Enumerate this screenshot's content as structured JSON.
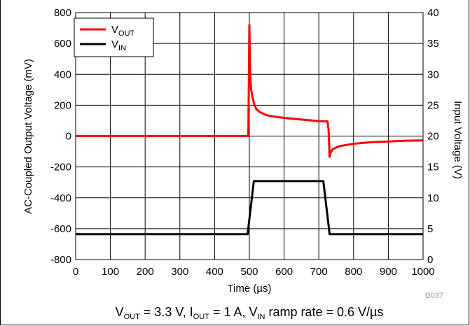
{
  "chart_data": {
    "type": "line",
    "xlabel": "Time (µs)",
    "ylabel_left": "AC-Coupled Output Voltage (mV)",
    "ylabel_right": "Input Voltage (V)",
    "xlim": [
      0,
      1000
    ],
    "ylim_left": [
      -800,
      800
    ],
    "ylim_right": [
      0,
      40
    ],
    "x_ticks": [
      "0",
      "100",
      "200",
      "300",
      "400",
      "500",
      "600",
      "700",
      "800",
      "900",
      "1000"
    ],
    "y_left_ticks": [
      "800",
      "600",
      "400",
      "200",
      "0",
      "-200",
      "-400",
      "-600",
      "-800"
    ],
    "y_right_ticks": [
      "40",
      "35",
      "30",
      "25",
      "20",
      "15",
      "10",
      "5",
      "0"
    ],
    "grid": true,
    "legend_position": "top-left",
    "series": [
      {
        "name": "VOUT",
        "legend_main": "V",
        "legend_sub": "OUT",
        "axis": "left",
        "color": "#ff0000",
        "x": [
          0,
          100,
          200,
          300,
          400,
          497,
          500,
          502,
          505,
          510,
          515,
          520,
          530,
          540,
          550,
          575,
          600,
          650,
          700,
          725,
          728,
          731,
          733,
          740,
          760,
          800,
          850,
          900,
          950,
          1000
        ],
        "y": [
          0,
          0,
          0,
          0,
          0,
          0,
          720,
          420,
          300,
          240,
          200,
          175,
          155,
          145,
          135,
          125,
          118,
          107,
          97,
          95,
          40,
          -135,
          -110,
          -85,
          -65,
          -50,
          -40,
          -35,
          -30,
          -28
        ]
      },
      {
        "name": "VIN",
        "legend_main": "V",
        "legend_sub": "IN",
        "axis": "right",
        "color": "#000000",
        "x": [
          0,
          495,
          513,
          713,
          731,
          1000
        ],
        "y": [
          4.1,
          4.1,
          12.7,
          12.7,
          4.1,
          4.1
        ]
      }
    ],
    "figure_code": "D037",
    "caption": {
      "p1": "V",
      "s1": "OUT",
      "t1": " = 3.3 V, I",
      "s2": "OUT",
      "t2": " = 1 A, V",
      "s3": "IN",
      "t3": " ramp rate = 0.6 V/µs"
    }
  }
}
